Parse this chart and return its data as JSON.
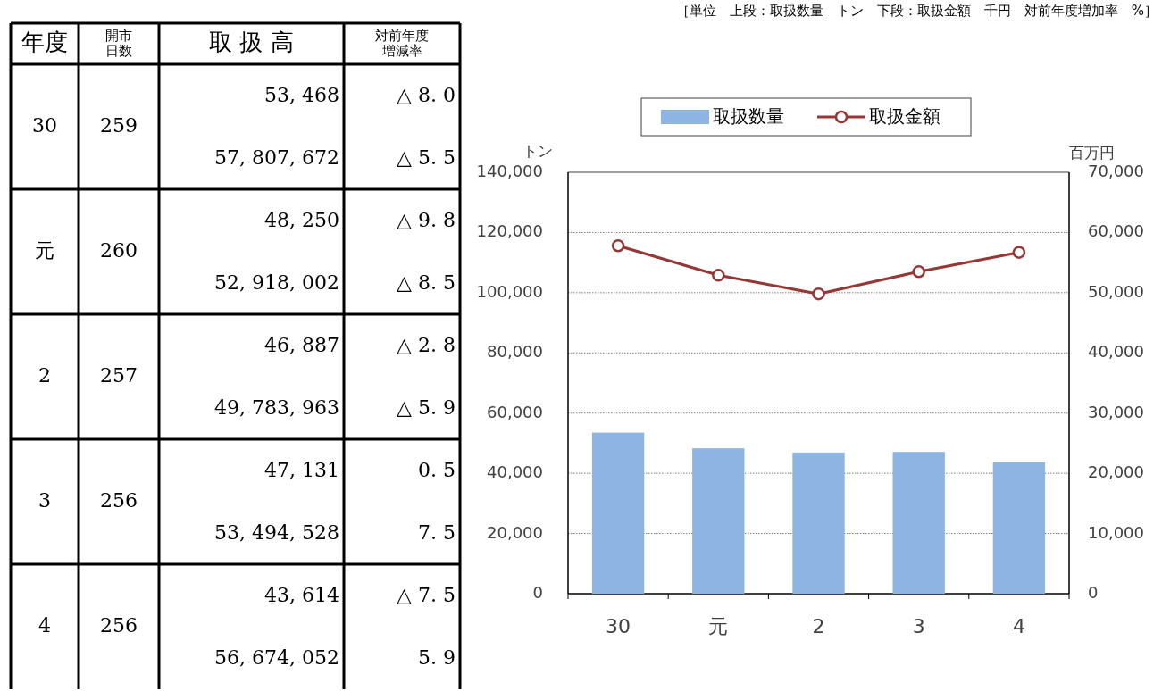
{
  "chart_data": [
    {
      "type": "other",
      "title": "［単位　上段：取扱数量　トン　下段：取扱金額　千円　対前年度増加率　%］",
      "annotations": [
        "年度",
        "開市日数",
        "取 扱 高",
        "対前年度増減率",
        "30",
        "259",
        "53, 468",
        "57, 807, 672",
        "△ 8. 0",
        "△ 5. 5",
        "元",
        "260",
        "48, 250",
        "52, 918, 002",
        "△ 9. 8",
        "△ 8. 5",
        "2",
        "257",
        "46, 887",
        "49, 783, 963",
        "△ 2. 8",
        "△ 5. 9",
        "3",
        "256",
        "47, 131",
        "53, 494, 528",
        "0. 5",
        "7. 5",
        "4",
        "256",
        "43, 614",
        "56, 674, 052",
        "△ 7. 5",
        "5. 9"
      ]
    },
    {
      "type": "bar",
      "categories": [
        "30",
        "元",
        "2",
        "3",
        "4"
      ],
      "series": [
        {
          "name": "取扱数量",
          "type": "bar",
          "color": "#8db4e2",
          "values": [
            53500,
            48300,
            46900,
            47100,
            43600
          ]
        },
        {
          "name": "取扱金額",
          "type": "line",
          "axis": "y2",
          "marker": "circle",
          "color": "#953735",
          "values": [
            57800,
            52900,
            49800,
            53500,
            56700
          ]
        }
      ],
      "ylabel": "トン",
      "y2label": "百万円",
      "ylim": [
        0,
        140000
      ],
      "yticks": [
        0,
        {
          "value": 20000,
          "label": "20,000"
        },
        {
          "value": 40000,
          "label": "40,000"
        },
        {
          "value": 60000,
          "label": "60,000"
        },
        {
          "value": 80000,
          "label": "80,000"
        },
        {
          "value": 100000,
          "label": "100,000"
        },
        {
          "value": 120000,
          "label": "120,000"
        },
        {
          "value": 140000,
          "label": "140,000"
        }
      ],
      "y2lim": [
        0,
        70000
      ],
      "y2ticks": [
        0,
        {
          "value": 10000,
          "label": "10,000"
        },
        {
          "value": 20000,
          "label": "20,000"
        },
        {
          "value": 30000,
          "label": "30,000"
        },
        {
          "value": 40000,
          "label": "40,000"
        },
        {
          "value": 50000,
          "label": "50,000"
        },
        {
          "value": 60000,
          "label": "60,000"
        },
        {
          "value": 70000,
          "label": "70,000"
        }
      ],
      "grid": "y",
      "legend": "top"
    }
  ]
}
